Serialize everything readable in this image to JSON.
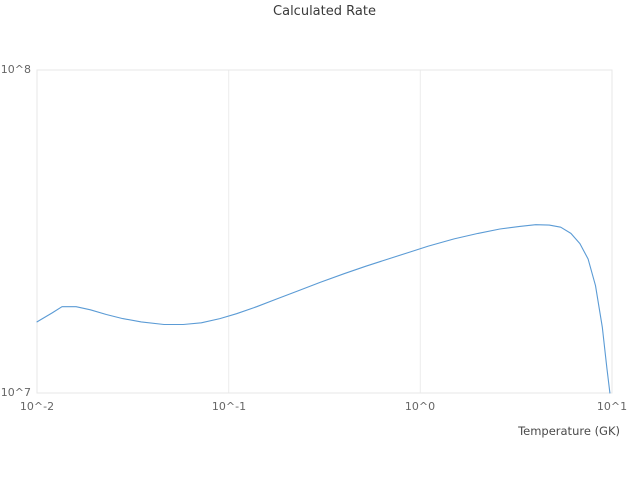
{
  "chart_data": {
    "type": "line",
    "title": "Calculated Rate",
    "xlabel": "Temperature (GK)",
    "ylabel": "",
    "x_scale": "log",
    "y_scale": "log",
    "xlim": [
      0.01,
      10
    ],
    "ylim": [
      10000000.0,
      100000000.0
    ],
    "x_ticks": [
      0.01,
      0.1,
      1,
      10
    ],
    "x_tick_labels": [
      "10^-2",
      "10^-1",
      "10^0",
      "10^1"
    ],
    "y_ticks": [
      10000000.0,
      100000000.0
    ],
    "y_tick_labels": [
      "10^7",
      "10^8"
    ],
    "grid": "on",
    "legend": "none",
    "line_color": "#5b9bd5",
    "grid_color": "#ececec",
    "border_color": "#e7e7e7",
    "tick_text_color": "#666666",
    "title_color": "#3a3a3a",
    "series": [
      {
        "name": "calculated-rate",
        "x": [
          0.01,
          0.012,
          0.0135,
          0.016,
          0.019,
          0.023,
          0.028,
          0.035,
          0.046,
          0.058,
          0.072,
          0.09,
          0.11,
          0.14,
          0.18,
          0.23,
          0.3,
          0.4,
          0.52,
          0.68,
          0.88,
          1.1,
          1.5,
          2.0,
          2.6,
          3.3,
          4.0,
          4.7,
          5.4,
          6.1,
          6.8,
          7.5,
          8.2,
          8.9,
          9.4,
          9.75
        ],
        "y": [
          16600000.0,
          17700000.0,
          18500000.0,
          18500000.0,
          18100000.0,
          17500000.0,
          17000000.0,
          16600000.0,
          16300000.0,
          16300000.0,
          16500000.0,
          17000000.0,
          17600000.0,
          18500000.0,
          19600000.0,
          20700000.0,
          22000000.0,
          23400000.0,
          24700000.0,
          26000000.0,
          27300000.0,
          28500000.0,
          30000000.0,
          31200000.0,
          32200000.0,
          32800000.0,
          33200000.0,
          33100000.0,
          32600000.0,
          31200000.0,
          29000000.0,
          26000000.0,
          21500000.0,
          16000000.0,
          12000000.0,
          10000000.0
        ]
      }
    ]
  }
}
